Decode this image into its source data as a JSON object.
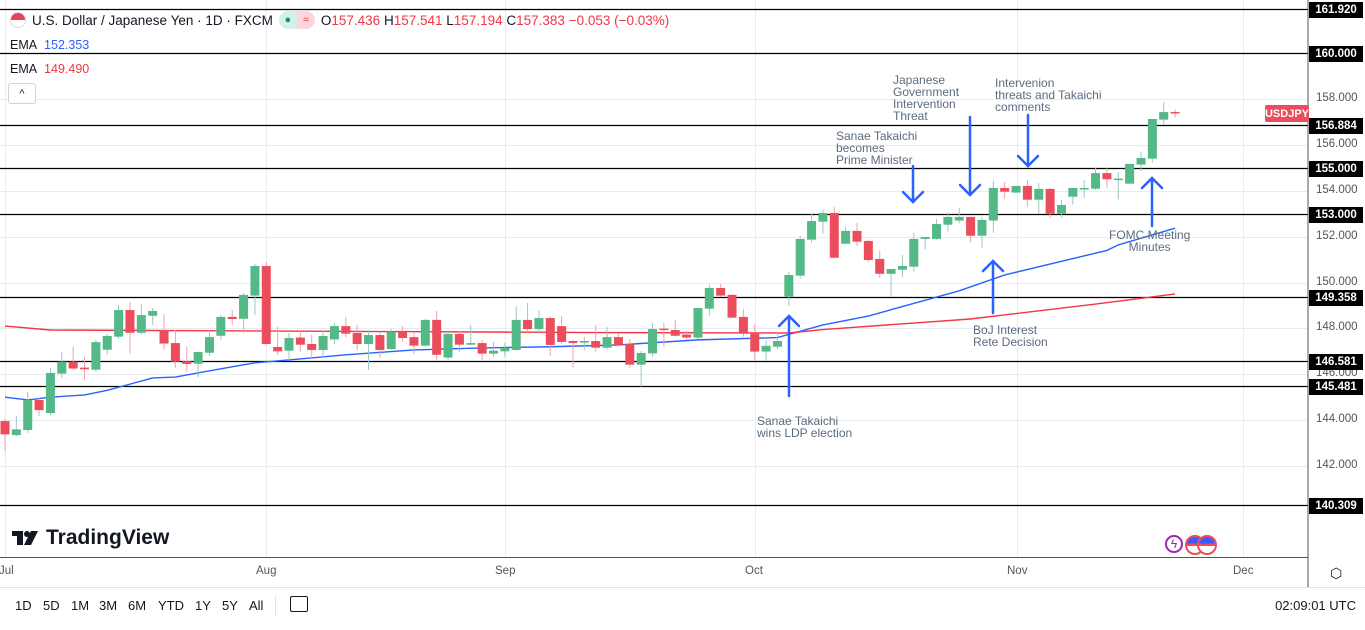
{
  "header": {
    "title": "U.S. Dollar / Japanese Yen · 1D · FXCM",
    "open_label": "O",
    "open": "157.436",
    "high_label": "H",
    "high": "157.541",
    "low_label": "L",
    "low": "157.194",
    "close_label": "C",
    "close": "157.383",
    "change": "−0.053 (−0.03%)"
  },
  "indicators": [
    {
      "name": "EMA",
      "value": "152.353",
      "color": "#2962ff"
    },
    {
      "name": "EMA",
      "value": "149.490",
      "color": "#f23645"
    }
  ],
  "symbol_badge": "USDJPY",
  "annotations": {
    "ldp": "Sanae Takaichi\nwins LDP election",
    "pm": "Sanae Takaichi\nbecomes\nPrime Minister",
    "gov": "Japanese\nGovernment\nIntervention\nThreat",
    "threats": "Intervenion\nthreats and Takaichi\ncomments",
    "boj": "BoJ Interest\nRete Decision",
    "fomc": "FOMC Meeting\nMinutes"
  },
  "logo": "TradingView",
  "toolbar": {
    "ranges": [
      "1D",
      "5D",
      "1M",
      "3M",
      "6M",
      "YTD",
      "1Y",
      "5Y",
      "All"
    ],
    "clock": "02:09:01 UTC"
  },
  "colors": {
    "up": "#53b987",
    "down": "#eb4d5c",
    "arrow": "#2962ff",
    "ema_fast": "#2962ff",
    "ema_slow": "#f23645"
  },
  "chart_data": {
    "type": "candlestick",
    "title": "U.S. Dollar / Japanese Yen · 1D · FXCM",
    "x_ticks": [
      "Jul",
      "Aug",
      "Sep",
      "Oct",
      "Nov",
      "Dec"
    ],
    "y_ticks": [
      "158.000",
      "156.000",
      "154.000",
      "152.000",
      "150.000",
      "148.000",
      "146.000",
      "144.000",
      "142.000"
    ],
    "ylim": [
      139.5,
      162.3
    ],
    "grid": true,
    "horizontal_levels": [
      "161.920",
      "160.000",
      "156.884",
      "155.000",
      "153.000",
      "149.358",
      "146.581",
      "145.481",
      "140.309"
    ],
    "ohlc": [
      [
        143.96,
        144.05,
        142.67,
        143.38
      ],
      [
        143.35,
        144.2,
        143.3,
        143.6
      ],
      [
        143.57,
        145.23,
        143.45,
        144.88
      ],
      [
        144.88,
        144.98,
        144.18,
        144.44
      ],
      [
        144.31,
        146.27,
        144.22,
        146.06
      ],
      [
        146.03,
        146.98,
        145.84,
        146.55
      ],
      [
        146.55,
        147.19,
        146.2,
        146.25
      ],
      [
        146.29,
        146.75,
        145.77,
        146.22
      ],
      [
        146.2,
        147.5,
        146.1,
        147.4
      ],
      [
        147.07,
        147.76,
        146.85,
        147.67
      ],
      [
        147.64,
        149.02,
        147.55,
        148.8
      ],
      [
        148.8,
        149.15,
        146.9,
        147.81
      ],
      [
        147.81,
        149.06,
        147.73,
        148.58
      ],
      [
        148.55,
        148.89,
        148.16,
        148.76
      ],
      [
        147.92,
        148.63,
        147.07,
        147.34
      ],
      [
        147.36,
        147.93,
        146.29,
        146.55
      ],
      [
        146.57,
        147.19,
        146.11,
        146.45
      ],
      [
        146.46,
        147.0,
        145.87,
        146.97
      ],
      [
        146.94,
        147.93,
        146.8,
        147.62
      ],
      [
        147.68,
        148.58,
        147.5,
        148.5
      ],
      [
        148.5,
        148.8,
        148.15,
        148.41
      ],
      [
        148.42,
        149.54,
        147.81,
        149.46
      ],
      [
        149.43,
        150.81,
        148.58,
        150.72
      ],
      [
        150.72,
        150.9,
        147.28,
        147.32
      ],
      [
        147.19,
        148.06,
        146.84,
        147.0
      ],
      [
        147.03,
        147.8,
        146.62,
        147.58
      ],
      [
        147.6,
        147.89,
        146.98,
        147.29
      ],
      [
        147.32,
        147.72,
        146.67,
        147.06
      ],
      [
        147.06,
        147.89,
        146.71,
        147.67
      ],
      [
        147.52,
        148.25,
        147.32,
        148.1
      ],
      [
        148.1,
        148.5,
        147.6,
        147.77
      ],
      [
        147.8,
        148.16,
        147.06,
        147.32
      ],
      [
        147.32,
        147.93,
        146.19,
        147.71
      ],
      [
        147.71,
        147.81,
        146.71,
        147.06
      ],
      [
        147.1,
        147.97,
        147.06,
        147.86
      ],
      [
        147.86,
        148.1,
        147.42,
        147.58
      ],
      [
        147.62,
        147.81,
        146.88,
        147.25
      ],
      [
        147.25,
        148.42,
        147.2,
        148.37
      ],
      [
        148.37,
        148.76,
        146.58,
        146.85
      ],
      [
        146.73,
        147.93,
        146.62,
        147.76
      ],
      [
        147.76,
        147.9,
        146.98,
        147.29
      ],
      [
        147.29,
        148.16,
        147.25,
        147.36
      ],
      [
        147.36,
        147.5,
        146.62,
        146.9
      ],
      [
        146.9,
        147.41,
        146.77,
        147.03
      ],
      [
        147.0,
        147.36,
        146.77,
        147.15
      ],
      [
        147.06,
        148.95,
        147.02,
        148.37
      ],
      [
        148.37,
        149.11,
        147.84,
        147.97
      ],
      [
        147.97,
        148.77,
        147.77,
        148.45
      ],
      [
        148.45,
        148.51,
        146.81,
        147.28
      ],
      [
        148.1,
        148.55,
        147.32,
        147.41
      ],
      [
        147.45,
        147.5,
        146.29,
        147.36
      ],
      [
        147.38,
        147.62,
        147.06,
        147.45
      ],
      [
        147.45,
        148.16,
        146.98,
        147.16
      ],
      [
        147.16,
        148.06,
        147.1,
        147.62
      ],
      [
        147.62,
        147.77,
        147.2,
        147.28
      ],
      [
        147.32,
        147.54,
        146.29,
        146.42
      ],
      [
        146.42,
        147.02,
        145.46,
        146.93
      ],
      [
        146.91,
        148.24,
        146.77,
        147.97
      ],
      [
        147.99,
        148.25,
        147.2,
        147.95
      ],
      [
        147.93,
        148.37,
        147.64,
        147.68
      ],
      [
        147.73,
        147.9,
        147.5,
        147.6
      ],
      [
        147.6,
        148.89,
        147.53,
        148.89
      ],
      [
        148.86,
        149.9,
        148.55,
        149.76
      ],
      [
        149.76,
        149.94,
        149.37,
        149.43
      ],
      [
        149.46,
        149.5,
        148.44,
        148.47
      ],
      [
        148.5,
        148.85,
        147.64,
        147.77
      ],
      [
        147.82,
        148.19,
        146.62,
        146.99
      ],
      [
        146.99,
        147.5,
        146.59,
        147.24
      ],
      [
        147.2,
        147.81,
        147.09,
        147.45
      ],
      [
        149.39,
        150.47,
        148.98,
        150.33
      ],
      [
        150.3,
        152.04,
        150.15,
        151.9
      ],
      [
        151.87,
        152.99,
        151.74,
        152.68
      ],
      [
        152.65,
        153.19,
        152.12,
        153.03
      ],
      [
        153.03,
        153.29,
        151.08,
        151.08
      ],
      [
        151.69,
        152.43,
        151.69,
        152.25
      ],
      [
        152.25,
        152.6,
        151.6,
        151.78
      ],
      [
        151.81,
        151.87,
        150.9,
        150.98
      ],
      [
        151.03,
        151.37,
        150.2,
        150.38
      ],
      [
        150.38,
        150.59,
        149.38,
        150.59
      ],
      [
        150.56,
        151.2,
        150.25,
        150.72
      ],
      [
        150.69,
        152.17,
        150.47,
        151.9
      ],
      [
        151.9,
        151.98,
        151.46,
        151.98
      ],
      [
        151.9,
        152.77,
        151.87,
        152.55
      ],
      [
        152.52,
        153.04,
        152.22,
        152.86
      ],
      [
        152.7,
        153.26,
        152.58,
        152.86
      ],
      [
        152.86,
        152.86,
        151.75,
        152.04
      ],
      [
        152.04,
        152.86,
        151.52,
        152.73
      ],
      [
        152.7,
        154.44,
        152.17,
        154.12
      ],
      [
        154.12,
        154.38,
        153.65,
        153.96
      ],
      [
        153.92,
        154.21,
        153.92,
        154.21
      ],
      [
        154.21,
        154.47,
        153.31,
        153.61
      ],
      [
        153.61,
        154.33,
        152.99,
        154.08
      ],
      [
        154.08,
        154.12,
        152.83,
        153.0
      ],
      [
        153.0,
        153.6,
        152.83,
        153.38
      ],
      [
        153.74,
        154.12,
        153.4,
        154.12
      ],
      [
        154.08,
        154.48,
        153.68,
        154.12
      ],
      [
        154.09,
        155.0,
        154.03,
        154.77
      ],
      [
        154.77,
        154.98,
        154.13,
        154.5
      ],
      [
        154.5,
        154.83,
        153.63,
        154.53
      ],
      [
        154.31,
        155.17,
        154.31,
        155.17
      ],
      [
        155.14,
        155.7,
        154.85,
        155.43
      ],
      [
        155.4,
        157.13,
        155.22,
        157.13
      ],
      [
        157.1,
        157.87,
        156.88,
        157.43
      ],
      [
        157.436,
        157.541,
        157.194,
        157.383
      ]
    ],
    "series": [
      {
        "name": "EMA",
        "color": "#2962ff",
        "points": [
          [
            0,
            145.0
          ],
          [
            2,
            144.88
          ],
          [
            4,
            145.0
          ],
          [
            7,
            145.1
          ],
          [
            9,
            145.3
          ],
          [
            13,
            145.84
          ],
          [
            15,
            145.88
          ],
          [
            18,
            146.15
          ],
          [
            22,
            146.5
          ],
          [
            26,
            146.67
          ],
          [
            30,
            146.85
          ],
          [
            36,
            147.06
          ],
          [
            42,
            147.15
          ],
          [
            48,
            147.2
          ],
          [
            54,
            147.28
          ],
          [
            61,
            147.5
          ],
          [
            68,
            147.6
          ],
          [
            72,
            148.15
          ],
          [
            76,
            148.54
          ],
          [
            84,
            149.64
          ],
          [
            88,
            150.33
          ],
          [
            97,
            151.4
          ],
          [
            98,
            151.64
          ],
          [
            103,
            152.37
          ]
        ]
      },
      {
        "name": "EMA",
        "color": "#f23645",
        "points": [
          [
            0,
            148.1
          ],
          [
            4,
            147.93
          ],
          [
            17,
            147.9
          ],
          [
            35,
            147.86
          ],
          [
            52,
            147.82
          ],
          [
            69,
            147.8
          ],
          [
            72,
            147.95
          ],
          [
            85,
            148.41
          ],
          [
            96,
            149.06
          ],
          [
            103,
            149.5
          ]
        ]
      }
    ]
  }
}
